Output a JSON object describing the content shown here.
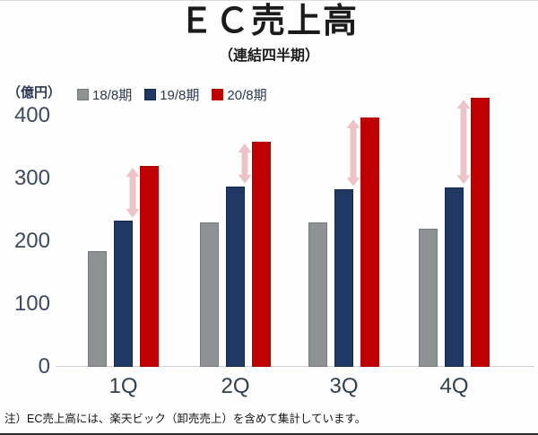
{
  "page": {
    "title": "ＥＣ売上高",
    "subtitle": "（連結四半期）",
    "note": "注）EC売上高には、楽天ビック（卸売売上）を含めて集計しています。"
  },
  "chart_data": {
    "type": "bar",
    "title": "ＥＣ売上高",
    "subtitle": "（連結四半期）",
    "unit_label": "（億円）",
    "categories": [
      "1Q",
      "2Q",
      "3Q",
      "4Q"
    ],
    "series": [
      {
        "key": "fy18",
        "name": "18/8期",
        "color": "#8F9292",
        "border": "#757A7A",
        "values": [
          185,
          230,
          230,
          220
        ]
      },
      {
        "key": "fy19",
        "name": "19/8期",
        "color": "#1F3864",
        "border": "#15294A",
        "values": [
          233,
          287,
          283,
          286
        ]
      },
      {
        "key": "fy20",
        "name": "20/8期",
        "color": "#C00000",
        "border": "#AD0000",
        "values": [
          320,
          358,
          397,
          428
        ]
      }
    ],
    "yticks": [
      0,
      100,
      200,
      300,
      400
    ],
    "ylim": [
      0,
      400
    ],
    "grid": false,
    "legend_position": "top-left",
    "annotations": [
      {
        "type": "double-arrow",
        "color": "#ECC3C6",
        "meaning": "YoY gap between 19/8期 bar top and 20/8期 bar top, shown for every quarter"
      }
    ]
  }
}
